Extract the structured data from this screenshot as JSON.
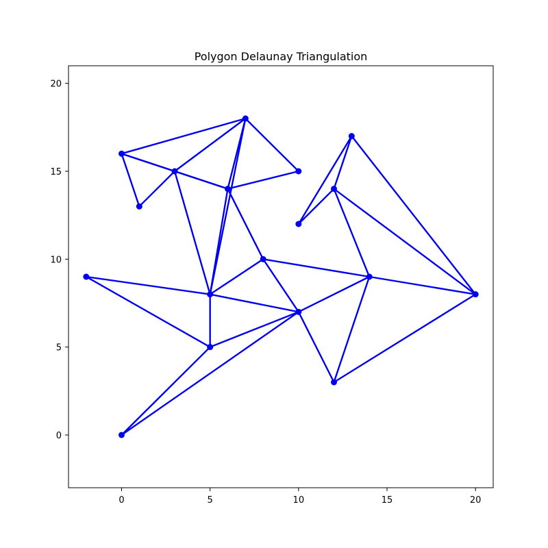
{
  "chart_data": {
    "type": "scatter",
    "title": "Polygon Delaunay Triangulation",
    "xlabel": "",
    "ylabel": "",
    "xlim": [
      -3,
      21
    ],
    "ylim": [
      -3,
      21
    ],
    "x_ticks": [
      0,
      5,
      10,
      15,
      20
    ],
    "y_ticks": [
      0,
      5,
      10,
      15,
      20
    ],
    "grid": false,
    "color": "#0000ee",
    "points": [
      [
        0,
        16
      ],
      [
        1,
        13
      ],
      [
        3,
        15
      ],
      [
        7,
        18
      ],
      [
        6,
        14
      ],
      [
        10,
        15
      ],
      [
        5,
        8
      ],
      [
        5,
        5
      ],
      [
        8,
        10
      ],
      [
        10,
        7
      ],
      [
        -2,
        9
      ],
      [
        0,
        0
      ],
      [
        14,
        9
      ],
      [
        12,
        3
      ],
      [
        20,
        8
      ],
      [
        12,
        14
      ],
      [
        13,
        17
      ],
      [
        10,
        12
      ]
    ],
    "edges": [
      [
        [
          0,
          16
        ],
        [
          1,
          13
        ]
      ],
      [
        [
          1,
          13
        ],
        [
          3,
          15
        ]
      ],
      [
        [
          0,
          16
        ],
        [
          3,
          15
        ]
      ],
      [
        [
          0,
          16
        ],
        [
          7,
          18
        ]
      ],
      [
        [
          3,
          15
        ],
        [
          7,
          18
        ]
      ],
      [
        [
          3,
          15
        ],
        [
          6,
          14
        ]
      ],
      [
        [
          0,
          16
        ],
        [
          6,
          14
        ]
      ],
      [
        [
          6,
          14
        ],
        [
          7,
          18
        ]
      ],
      [
        [
          7,
          18
        ],
        [
          10,
          15
        ]
      ],
      [
        [
          6,
          14
        ],
        [
          10,
          15
        ]
      ],
      [
        [
          3,
          15
        ],
        [
          5,
          8
        ]
      ],
      [
        [
          5,
          8
        ],
        [
          6,
          14
        ]
      ],
      [
        [
          5,
          8
        ],
        [
          7,
          18
        ]
      ],
      [
        [
          6,
          14
        ],
        [
          8,
          10
        ]
      ],
      [
        [
          5,
          8
        ],
        [
          8,
          10
        ]
      ],
      [
        [
          8,
          10
        ],
        [
          10,
          7
        ]
      ],
      [
        [
          5,
          8
        ],
        [
          10,
          7
        ]
      ],
      [
        [
          5,
          8
        ],
        [
          5,
          5
        ]
      ],
      [
        [
          5,
          5
        ],
        [
          10,
          7
        ]
      ],
      [
        [
          -2,
          9
        ],
        [
          5,
          8
        ]
      ],
      [
        [
          -2,
          9
        ],
        [
          5,
          5
        ]
      ],
      [
        [
          0,
          0
        ],
        [
          5,
          5
        ]
      ],
      [
        [
          0,
          0
        ],
        [
          10,
          7
        ]
      ],
      [
        [
          8,
          10
        ],
        [
          14,
          9
        ]
      ],
      [
        [
          10,
          7
        ],
        [
          14,
          9
        ]
      ],
      [
        [
          10,
          7
        ],
        [
          12,
          3
        ]
      ],
      [
        [
          12,
          3
        ],
        [
          14,
          9
        ]
      ],
      [
        [
          12,
          3
        ],
        [
          20,
          8
        ]
      ],
      [
        [
          14,
          9
        ],
        [
          20,
          8
        ]
      ],
      [
        [
          12,
          14
        ],
        [
          14,
          9
        ]
      ],
      [
        [
          12,
          14
        ],
        [
          20,
          8
        ]
      ],
      [
        [
          13,
          17
        ],
        [
          20,
          8
        ]
      ],
      [
        [
          12,
          14
        ],
        [
          13,
          17
        ]
      ],
      [
        [
          10,
          12
        ],
        [
          13,
          17
        ]
      ],
      [
        [
          10,
          12
        ],
        [
          12,
          14
        ]
      ]
    ]
  }
}
